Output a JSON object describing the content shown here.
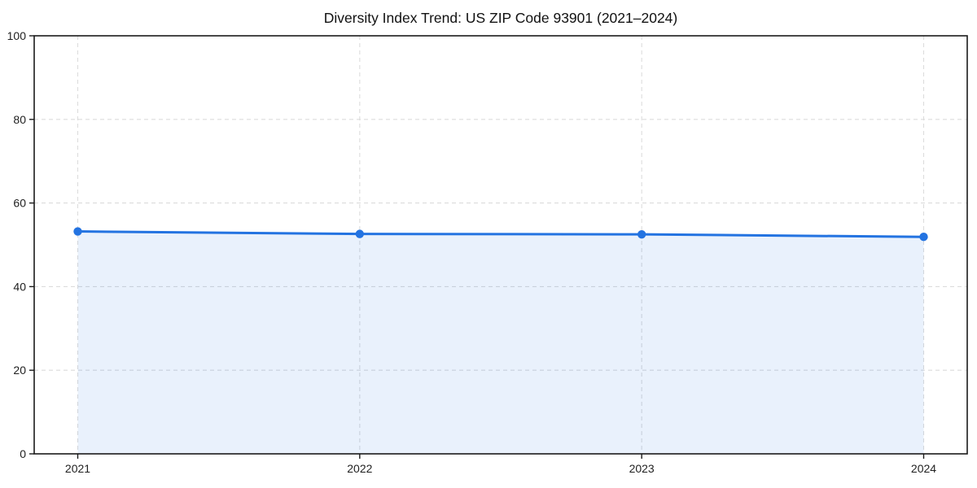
{
  "chart_data": {
    "type": "area",
    "title": "Diversity Index Trend: US ZIP Code 93901 (2021–2024)",
    "x": [
      2021,
      2022,
      2023,
      2024
    ],
    "series": [
      {
        "name": "Diversity Index",
        "values": [
          53.2,
          52.6,
          52.5,
          51.9
        ]
      }
    ],
    "xlabel": "",
    "ylabel": "",
    "ylim": [
      0,
      100
    ],
    "yticks": [
      0,
      20,
      40,
      60,
      80,
      100
    ],
    "grid": "dashed-both-axes",
    "legend": "none",
    "marker": "circle",
    "colors": {
      "line": "#2373e1",
      "marker": "#2373e1",
      "area_fill": "#2373e1",
      "area_fill_opacity": "0.10",
      "grid": "#dcdcdc",
      "axis": "#1a1a1a",
      "tick_text": "#1f1f1f",
      "title_text": "#111111",
      "background": "#ffffff"
    }
  }
}
